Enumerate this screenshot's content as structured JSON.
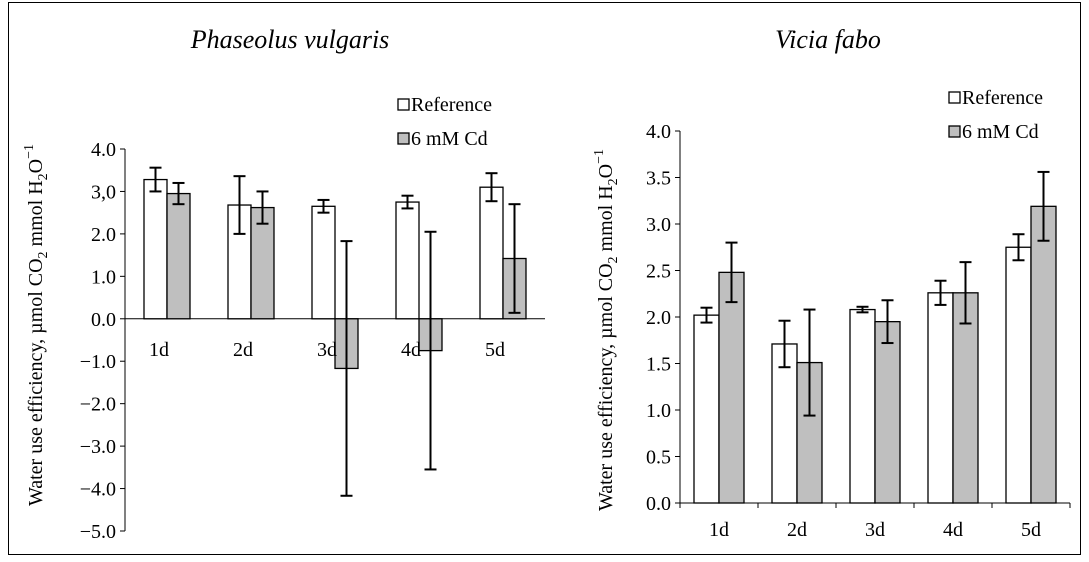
{
  "colors": {
    "reference": "#ffffff",
    "cd": "#bfbfbf",
    "axis": "#000000"
  },
  "chart_data": [
    {
      "type": "bar",
      "title": "Phaseolus vulgaris",
      "ylabel": "Water use efficiency, µmol CO₂ mmol H₂O⁻¹",
      "categories": [
        "1d",
        "2d",
        "3d",
        "4d",
        "5d"
      ],
      "ylim": [
        -5.0,
        4.0
      ],
      "yticks": [
        4.0,
        3.0,
        2.0,
        1.0,
        0.0,
        -1.0,
        -2.0,
        -3.0,
        -4.0,
        -5.0
      ],
      "ytick_labels": [
        "4.0",
        "3,0",
        "2.0",
        "1.0",
        "0.0",
        "−1.0",
        "−2.0",
        "−3.0",
        "−4.0",
        "−5.0"
      ],
      "legend": "top-right",
      "series": [
        {
          "name": "Reference",
          "values": [
            3.28,
            2.68,
            2.65,
            2.75,
            3.1
          ],
          "errors": [
            0.28,
            0.68,
            0.15,
            0.15,
            0.33
          ]
        },
        {
          "name": "6 mM Cd",
          "values": [
            2.95,
            2.62,
            -1.17,
            -0.75,
            1.42
          ],
          "errors": [
            0.25,
            0.38,
            3.0,
            2.8,
            1.28
          ]
        }
      ]
    },
    {
      "type": "bar",
      "title": "Vicia fabo",
      "ylabel": "Water use efficiency, µmol CO₂ mmol H₂O⁻¹",
      "categories": [
        "1d",
        "2d",
        "3d",
        "4d",
        "5d"
      ],
      "ylim": [
        0.0,
        4.0
      ],
      "yticks": [
        4.0,
        3.5,
        3.0,
        2.5,
        2.0,
        1.5,
        1.0,
        0.5,
        0.0
      ],
      "ytick_labels": [
        "4.0",
        "3.5",
        "3.0",
        "2.5",
        "2.0",
        "1.5",
        "1.0",
        "0.5",
        "0.0"
      ],
      "legend": "top-right",
      "series": [
        {
          "name": "Reference",
          "values": [
            2.02,
            1.71,
            2.08,
            2.26,
            2.75
          ],
          "errors": [
            0.08,
            0.25,
            0.03,
            0.13,
            0.14
          ]
        },
        {
          "name": "6 mM Cd",
          "values": [
            2.48,
            1.51,
            1.95,
            2.26,
            3.19
          ],
          "errors": [
            0.32,
            0.57,
            0.23,
            0.33,
            0.37
          ]
        }
      ]
    }
  ]
}
